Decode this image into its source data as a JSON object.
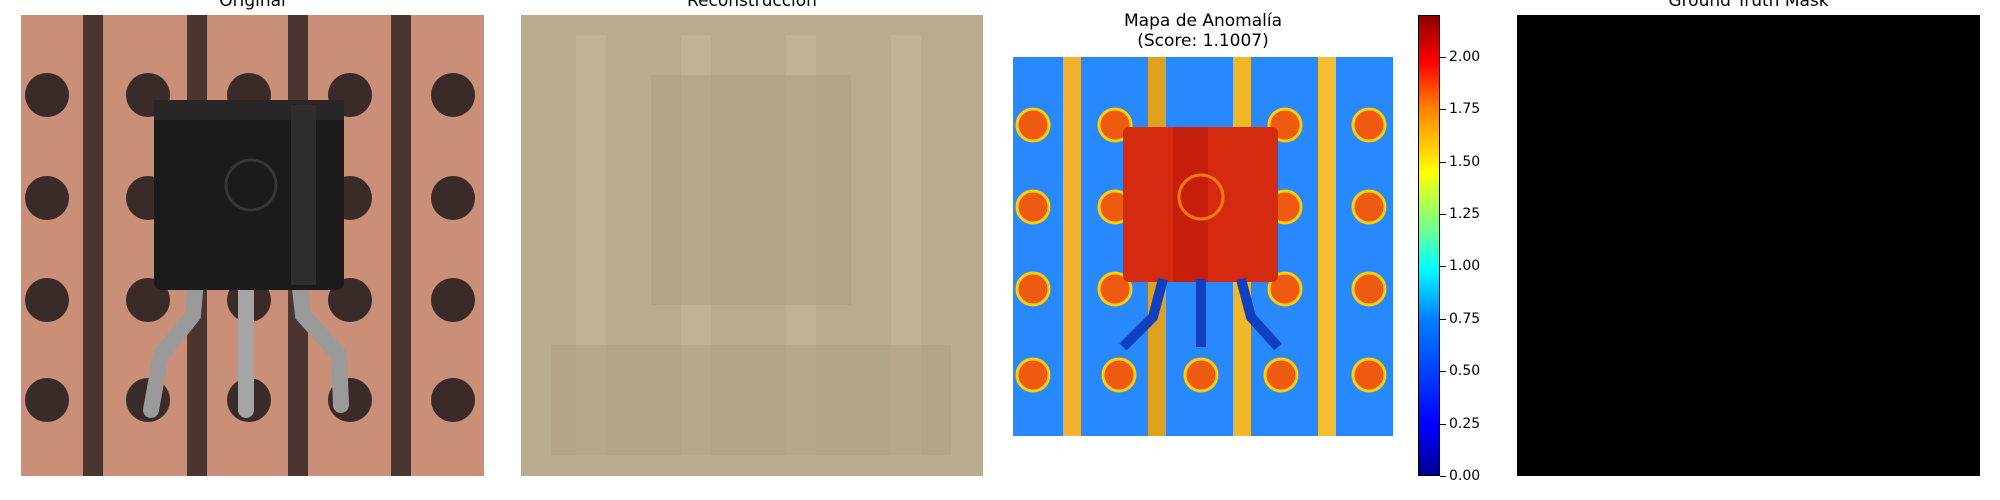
{
  "titles": {
    "original": "Original",
    "reconstruction": "Reconstrucción",
    "anomaly": "Mapa de Anomalía\n(Score: 1.1007)",
    "ground_truth": "Ground Truth Mask"
  },
  "colorbar": {
    "ticks": [
      "0.00",
      "0.25",
      "0.50",
      "0.75",
      "1.00",
      "1.25",
      "1.50",
      "1.75",
      "2.00"
    ],
    "range": [
      0,
      2.2
    ],
    "colormap": "jet"
  },
  "colors": {
    "board": "#c98f78",
    "reconstruction": "#b9ab8e",
    "heatmap_bg": "#1f7dff",
    "mask": "#000000"
  }
}
